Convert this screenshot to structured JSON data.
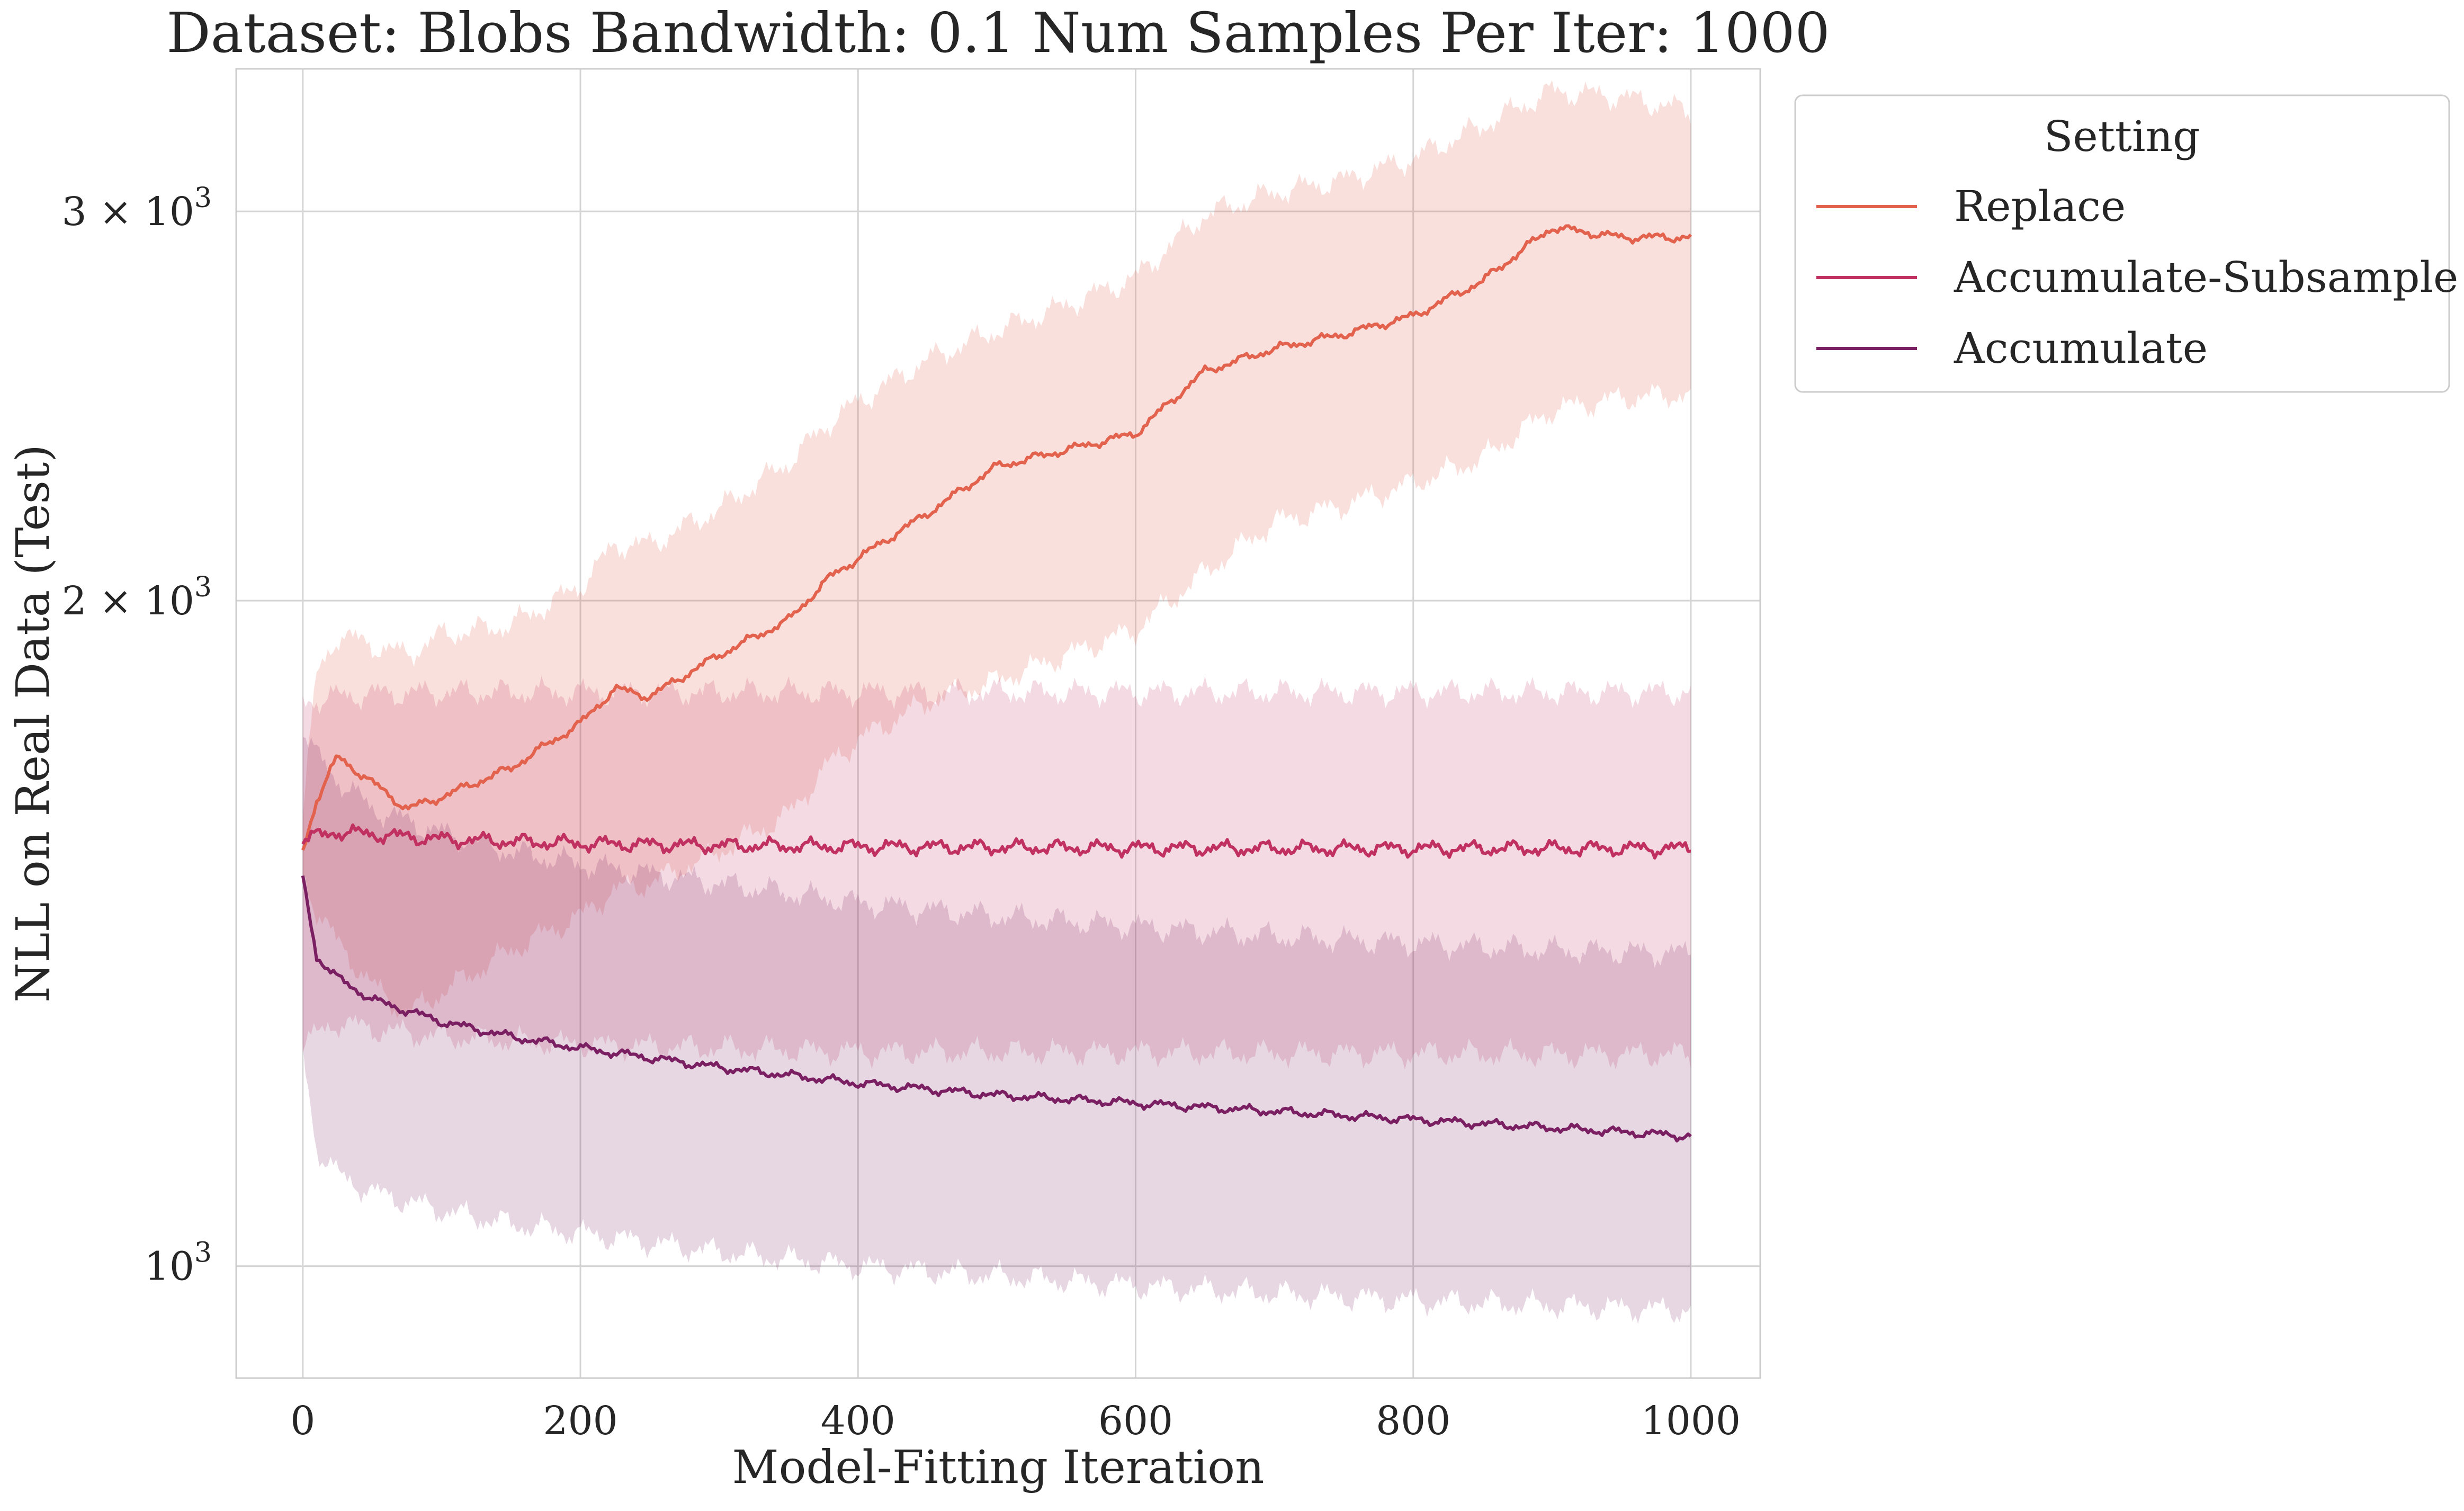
{
  "chart_data": {
    "type": "line",
    "title": "Dataset: Blobs Bandwidth: 0.1 Num Samples Per Iter: 1000",
    "xlabel": "Model-Fitting Iteration",
    "ylabel": "NLL on Real Data (Test)",
    "xlim": [
      -48,
      1050
    ],
    "ylim": [
      890,
      3480
    ],
    "yscale": "log",
    "grid": true,
    "x_ticks": [
      0,
      200,
      400,
      600,
      800,
      1000
    ],
    "x_tick_labels": [
      "0",
      "200",
      "400",
      "600",
      "800",
      "1000"
    ],
    "y_ticks": [
      1000,
      2000,
      3000
    ],
    "y_tick_labels": [
      {
        "base": "10",
        "exp": "3"
      },
      {
        "base": "2 × 10",
        "exp": "3"
      },
      {
        "base": "3 × 10",
        "exp": "3"
      }
    ],
    "legend": {
      "title": "Setting",
      "placement": "outside-upper-right"
    },
    "series": [
      {
        "name": "Replace",
        "color": "#e3624e",
        "x": [
          0,
          10,
          25,
          50,
          75,
          100,
          150,
          200,
          225,
          250,
          300,
          350,
          380,
          400,
          450,
          500,
          550,
          600,
          650,
          700,
          750,
          800,
          850,
          900,
          950,
          1000
        ],
        "mean": [
          1540,
          1625,
          1700,
          1655,
          1610,
          1630,
          1680,
          1760,
          1825,
          1810,
          1890,
          1960,
          2050,
          2090,
          2190,
          2300,
          2340,
          2380,
          2540,
          2600,
          2640,
          2690,
          2790,
          2950,
          2920,
          2920
        ],
        "lower": [
          1500,
          1450,
          1400,
          1340,
          1300,
          1330,
          1390,
          1440,
          1480,
          1490,
          1540,
          1600,
          1690,
          1730,
          1800,
          1840,
          1890,
          1940,
          2060,
          2170,
          2210,
          2260,
          2320,
          2440,
          2470,
          2480
        ],
        "upper": [
          1600,
          1850,
          1930,
          1910,
          1890,
          1930,
          1950,
          2030,
          2120,
          2120,
          2200,
          2310,
          2410,
          2460,
          2570,
          2650,
          2720,
          2800,
          2990,
          3060,
          3100,
          3170,
          3280,
          3400,
          3380,
          3330
        ]
      },
      {
        "name": "Accumulate-Subsample",
        "color": "#c03060",
        "x": [
          0,
          25,
          50,
          100,
          200,
          300,
          400,
          500,
          600,
          700,
          800,
          900,
          1000
        ],
        "mean": [
          1560,
          1572,
          1568,
          1560,
          1553,
          1550,
          1548,
          1547,
          1546,
          1545,
          1545,
          1545,
          1545
        ],
        "lower": [
          1260,
          1290,
          1280,
          1270,
          1260,
          1255,
          1250,
          1250,
          1250,
          1248,
          1248,
          1247,
          1247
        ],
        "upper": [
          1800,
          1810,
          1815,
          1818,
          1818,
          1818,
          1818,
          1818,
          1818,
          1818,
          1818,
          1818,
          1818
        ]
      },
      {
        "name": "Accumulate",
        "color": "#7b1f63",
        "x": [
          0,
          10,
          25,
          50,
          100,
          150,
          200,
          300,
          400,
          500,
          600,
          700,
          800,
          900,
          1000
        ],
        "mean": [
          1500,
          1380,
          1350,
          1320,
          1290,
          1270,
          1255,
          1230,
          1210,
          1195,
          1185,
          1175,
          1165,
          1155,
          1145
        ],
        "lower": [
          1250,
          1130,
          1100,
          1080,
          1060,
          1045,
          1035,
          1015,
          1000,
          990,
          980,
          972,
          965,
          960,
          955
        ],
        "upper": [
          1750,
          1700,
          1660,
          1610,
          1570,
          1540,
          1520,
          1490,
          1460,
          1440,
          1425,
          1410,
          1400,
          1390,
          1385
        ]
      }
    ]
  }
}
